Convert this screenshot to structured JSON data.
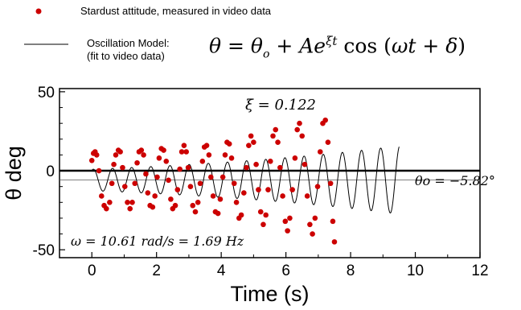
{
  "legend": {
    "points_label": "Stardust attitude,  measured in video data",
    "model_label_line1": "Oscillation Model:",
    "model_label_line2": "(fit to video data)",
    "model_equation": "θ = θo + Ae^(ξt) cos(ωt + δ)"
  },
  "chart_data": {
    "type": "line",
    "xlabel": "Time (s)",
    "ylabel": "θ deg",
    "xlim": [
      -1,
      12
    ],
    "ylim": [
      -55,
      52
    ],
    "xticks": [
      0,
      2,
      4,
      6,
      8,
      10,
      12
    ],
    "yticks": [
      -50,
      0,
      50
    ],
    "grid": false,
    "legend_position": "top",
    "colors": {
      "data_points": "#cc0000",
      "model_line": "#000000",
      "zero_line": "#000000"
    },
    "model": {
      "theta_o": -5.82,
      "A": 6.78,
      "xi": 0.122,
      "omega": 10.61,
      "delta": -0.5,
      "t_range": [
        0,
        9.5
      ]
    },
    "annotations": {
      "xi_text": "ξ = 0.122",
      "theta_o_text": "θo = −5.82°",
      "omega_text": "ω = 10.61 rad/s  = 1.69 Hz"
    },
    "points": [
      [
        0.0,
        6.5
      ],
      [
        0.05,
        11
      ],
      [
        0.1,
        12
      ],
      [
        0.15,
        10
      ],
      [
        0.22,
        0
      ],
      [
        0.3,
        -16
      ],
      [
        0.38,
        -22
      ],
      [
        0.45,
        -24
      ],
      [
        0.55,
        -20
      ],
      [
        0.62,
        -8
      ],
      [
        0.68,
        4
      ],
      [
        0.74,
        10
      ],
      [
        0.82,
        13
      ],
      [
        0.88,
        12
      ],
      [
        0.95,
        2
      ],
      [
        1.02,
        -10
      ],
      [
        1.1,
        -20
      ],
      [
        1.18,
        -24
      ],
      [
        1.25,
        -20
      ],
      [
        1.33,
        -8
      ],
      [
        1.4,
        5
      ],
      [
        1.46,
        12
      ],
      [
        1.53,
        13
      ],
      [
        1.6,
        10
      ],
      [
        1.67,
        -2
      ],
      [
        1.73,
        -14
      ],
      [
        1.8,
        -22
      ],
      [
        1.88,
        -23
      ],
      [
        1.95,
        -16
      ],
      [
        2.02,
        -4
      ],
      [
        2.08,
        8
      ],
      [
        2.15,
        14
      ],
      [
        2.22,
        13
      ],
      [
        2.3,
        6
      ],
      [
        2.37,
        -6
      ],
      [
        2.44,
        -18
      ],
      [
        2.5,
        -24
      ],
      [
        2.58,
        -22
      ],
      [
        2.65,
        -12
      ],
      [
        2.72,
        1
      ],
      [
        2.78,
        12
      ],
      [
        2.85,
        16
      ],
      [
        2.92,
        12
      ],
      [
        2.98,
        2
      ],
      [
        3.05,
        -10
      ],
      [
        3.12,
        -22
      ],
      [
        3.2,
        -26
      ],
      [
        3.28,
        -20
      ],
      [
        3.35,
        -8
      ],
      [
        3.42,
        6
      ],
      [
        3.48,
        15
      ],
      [
        3.55,
        16
      ],
      [
        3.62,
        10
      ],
      [
        3.68,
        -4
      ],
      [
        3.75,
        -16
      ],
      [
        3.82,
        -26
      ],
      [
        3.9,
        -27
      ],
      [
        3.97,
        -18
      ],
      [
        4.05,
        -4
      ],
      [
        4.12,
        10
      ],
      [
        4.18,
        18
      ],
      [
        4.25,
        17
      ],
      [
        4.32,
        8
      ],
      [
        4.4,
        -8
      ],
      [
        4.47,
        -20
      ],
      [
        4.55,
        -30
      ],
      [
        4.62,
        -28
      ],
      [
        4.7,
        -14
      ],
      [
        4.78,
        2
      ],
      [
        4.85,
        16
      ],
      [
        4.92,
        22
      ],
      [
        5.0,
        18
      ],
      [
        5.08,
        4
      ],
      [
        5.15,
        -12
      ],
      [
        5.22,
        -26
      ],
      [
        5.3,
        -34
      ],
      [
        5.38,
        -28
      ],
      [
        5.45,
        -12
      ],
      [
        5.52,
        6
      ],
      [
        5.6,
        22
      ],
      [
        5.68,
        26
      ],
      [
        5.75,
        18
      ],
      [
        5.82,
        2
      ],
      [
        5.9,
        -16
      ],
      [
        5.98,
        -32
      ],
      [
        6.05,
        -38
      ],
      [
        6.12,
        -30
      ],
      [
        6.2,
        -12
      ],
      [
        6.28,
        8
      ],
      [
        6.35,
        26
      ],
      [
        6.42,
        30
      ],
      [
        6.5,
        22
      ],
      [
        6.58,
        4
      ],
      [
        6.66,
        -16
      ],
      [
        6.74,
        -34
      ],
      [
        6.82,
        -40
      ],
      [
        6.9,
        -30
      ],
      [
        6.98,
        -10
      ],
      [
        7.06,
        12
      ],
      [
        7.14,
        30
      ],
      [
        7.22,
        32
      ],
      [
        7.3,
        18
      ],
      [
        7.38,
        -8
      ],
      [
        7.45,
        -32
      ],
      [
        7.5,
        -45
      ]
    ]
  }
}
